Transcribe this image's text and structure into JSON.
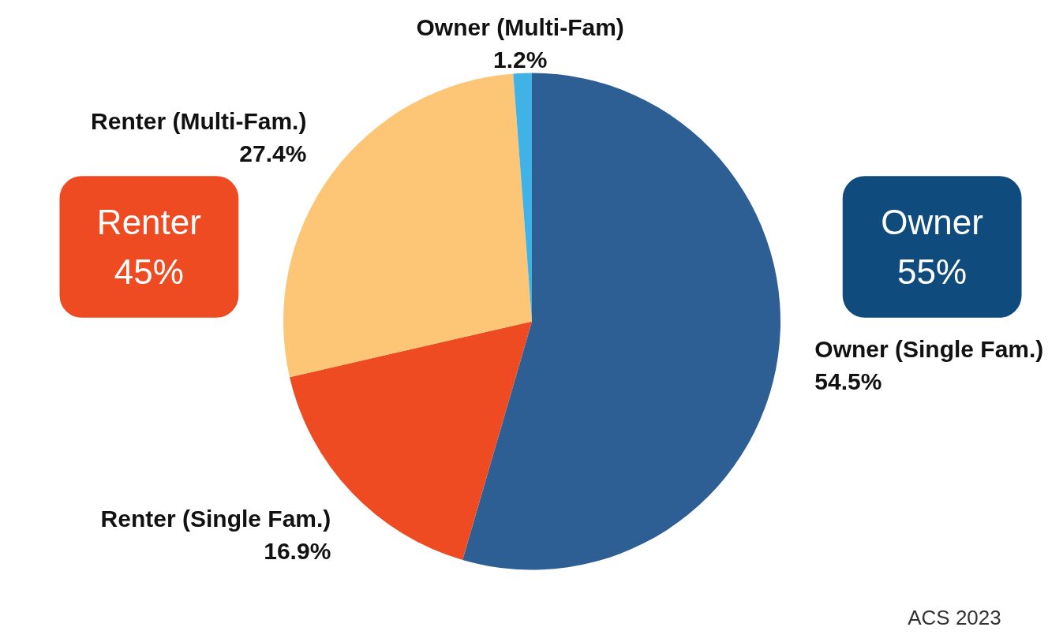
{
  "chart_data": {
    "type": "pie",
    "categories": [
      "Owner (Single Fam.)",
      "Renter (Single Fam.)",
      "Renter (Multi-Fam.)",
      "Owner (Multi-Fam)"
    ],
    "values": [
      54.5,
      16.9,
      27.4,
      1.2
    ],
    "value_labels": [
      "54.5%",
      "16.9%",
      "27.4%",
      "1.2%"
    ],
    "colors": [
      "#2e5f94",
      "#ee4b22",
      "#fcc676",
      "#41b2e5"
    ],
    "annotations": [
      "Renter\n45%",
      "Owner\n55%",
      "ACS 2023"
    ]
  }
}
